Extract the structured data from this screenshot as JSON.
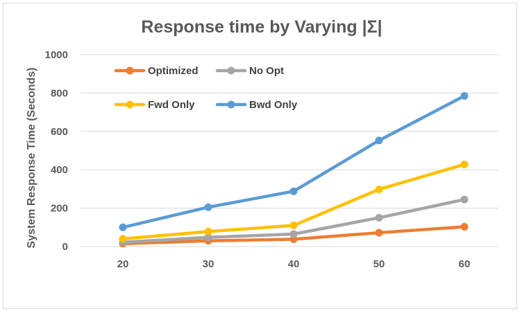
{
  "chart_data": {
    "type": "line",
    "title": "Response time by Varying |Σ|",
    "xlabel": "",
    "ylabel": "System Response Time (Seconds)",
    "x": [
      20,
      30,
      40,
      50,
      60
    ],
    "ylim": [
      0,
      1000
    ],
    "yticks": [
      0,
      200,
      400,
      600,
      800,
      1000
    ],
    "grid": true,
    "legend_position": "top-left",
    "series": [
      {
        "name": "Optimized",
        "color": "#ed7d31",
        "values": [
          15,
          30,
          38,
          72,
          103
        ]
      },
      {
        "name": "No Opt",
        "color": "#a5a5a5",
        "values": [
          22,
          48,
          65,
          150,
          245
        ]
      },
      {
        "name": "Fwd Only",
        "color": "#ffc000",
        "values": [
          40,
          78,
          110,
          298,
          428
        ]
      },
      {
        "name": "Bwd Only",
        "color": "#5b9bd5",
        "values": [
          100,
          205,
          288,
          553,
          785
        ]
      }
    ]
  }
}
